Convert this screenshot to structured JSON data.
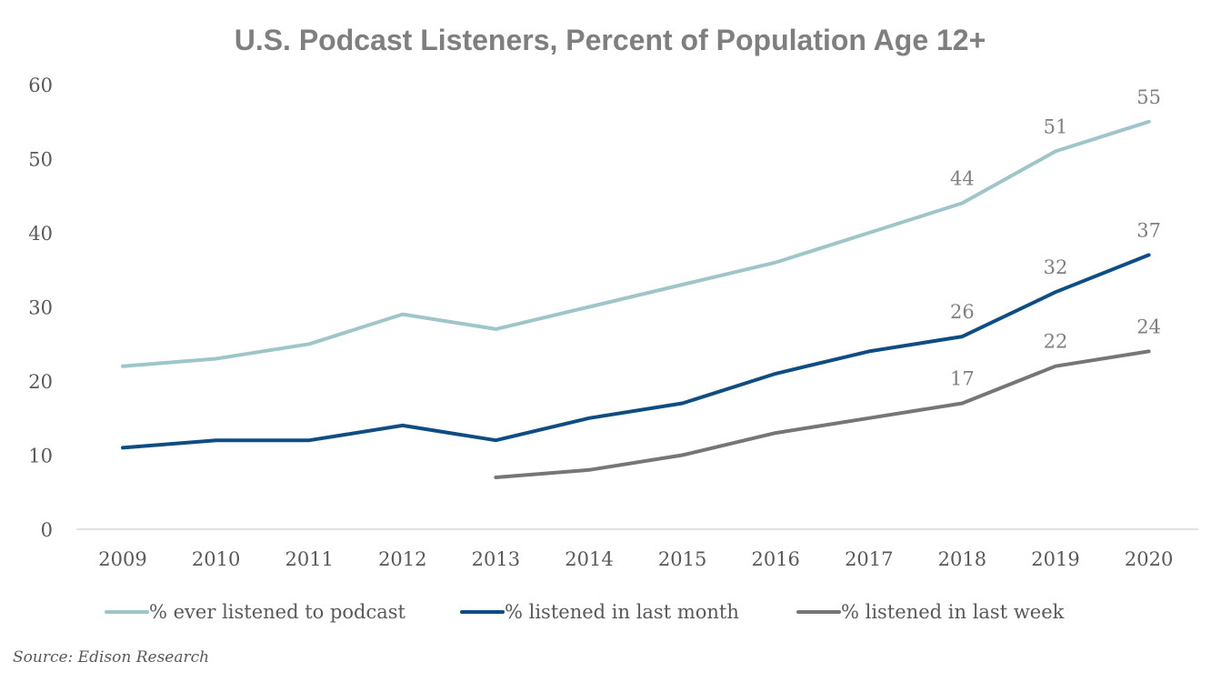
{
  "chart_data": {
    "type": "line",
    "title": "U.S. Podcast Listeners, Percent of Population Age 12+",
    "xlabel": "",
    "ylabel": "",
    "categories": [
      "2009",
      "2010",
      "2011",
      "2012",
      "2013",
      "2014",
      "2015",
      "2016",
      "2017",
      "2018",
      "2019",
      "2020"
    ],
    "ylim": [
      0,
      60
    ],
    "yticks": [
      "0",
      "10",
      "20",
      "30",
      "40",
      "50",
      "60"
    ],
    "grid": false,
    "legend_position": "bottom",
    "series": [
      {
        "name": "% ever listened to podcast",
        "color": "#9fc5c8",
        "values": [
          22,
          23,
          25,
          29,
          27,
          30,
          33,
          36,
          40,
          44,
          51,
          55
        ],
        "data_labels": {
          "2018": "44",
          "2019": "51",
          "2020": "55"
        }
      },
      {
        "name": "% listened in last month",
        "color": "#0f4c81",
        "values": [
          11,
          12,
          12,
          14,
          12,
          15,
          17,
          21,
          24,
          26,
          32,
          37
        ],
        "data_labels": {
          "2018": "26",
          "2019": "32",
          "2020": "37"
        }
      },
      {
        "name": "% listened in last week",
        "color": "#767676",
        "values": [
          null,
          null,
          null,
          null,
          7,
          8,
          10,
          13,
          15,
          17,
          22,
          24
        ],
        "data_labels": {
          "2018": "17",
          "2019": "22",
          "2020": "24"
        }
      }
    ],
    "source": "Source: Edison Research"
  }
}
